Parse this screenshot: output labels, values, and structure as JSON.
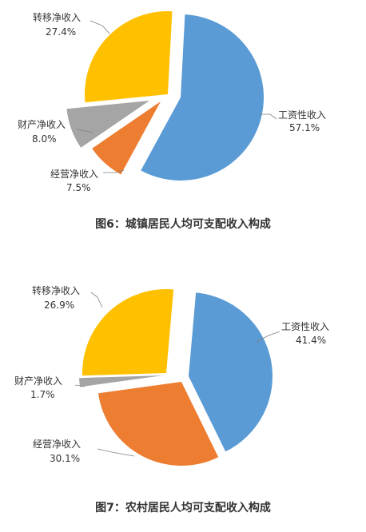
{
  "colors": {
    "wage": "#5B9BD5",
    "business": "#ED7D31",
    "property": "#A5A5A5",
    "transfer": "#FFC000",
    "leader": "#7f7f7f"
  },
  "chart_data": [
    {
      "type": "pie",
      "title": "图6：城镇居民人均可支配收入构成",
      "slices": [
        {
          "label": "工资性收入",
          "value_label": "57.1%",
          "value": 57.1,
          "color_key": "wage"
        },
        {
          "label": "经营净收入",
          "value_label": "7.5%",
          "value": 7.5,
          "color_key": "business"
        },
        {
          "label": "财产净收入",
          "value_label": "8.0%",
          "value": 8.0,
          "color_key": "property"
        },
        {
          "label": "转移净收入",
          "value_label": "27.4%",
          "value": 27.4,
          "color_key": "transfer"
        }
      ]
    },
    {
      "type": "pie",
      "title": "图7：农村居民人均可支配收入构成",
      "slices": [
        {
          "label": "工资性收入",
          "value_label": "41.4%",
          "value": 41.4,
          "color_key": "wage"
        },
        {
          "label": "经营净收入",
          "value_label": "30.1%",
          "value": 30.1,
          "color_key": "business"
        },
        {
          "label": "财产净收入",
          "value_label": "1.7%",
          "value": 1.7,
          "color_key": "property"
        },
        {
          "label": "转移净收入",
          "value_label": "26.9%",
          "value": 26.9,
          "color_key": "transfer"
        }
      ]
    }
  ]
}
